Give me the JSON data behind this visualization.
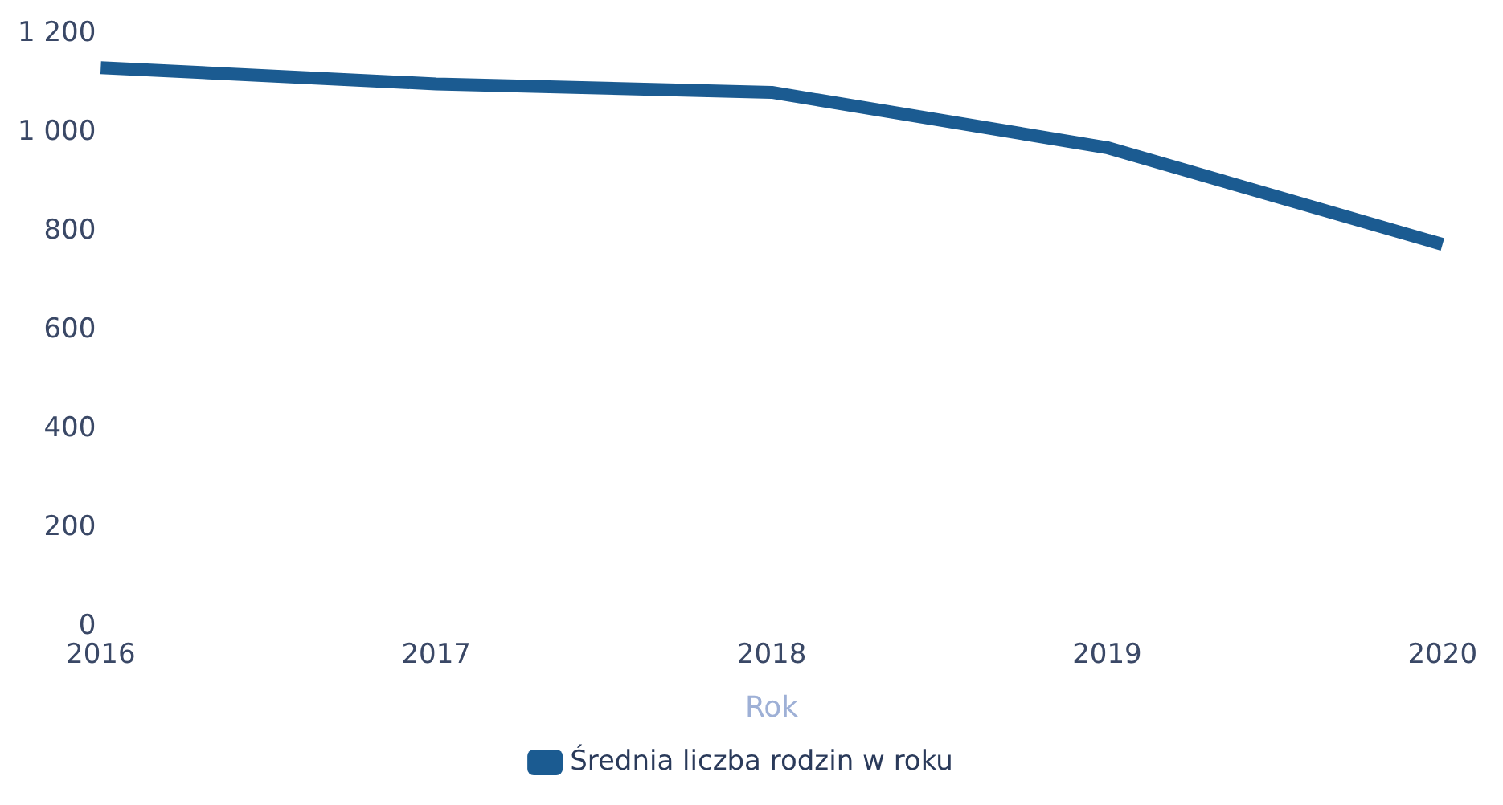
{
  "chart_data": {
    "type": "line",
    "xlabel": "Rok",
    "categories": [
      "2016",
      "2017",
      "2018",
      "2019",
      "2020"
    ],
    "series": [
      {
        "name": "Średnia liczba rodzin w roku",
        "color": "#1b5b91",
        "values": [
          1132,
          1099,
          1082,
          970,
          774
        ]
      }
    ],
    "ylim": [
      0,
      1200
    ],
    "yticks": [
      0,
      200,
      400,
      600,
      800,
      {
        "value": 1000,
        "label": "1 000"
      },
      {
        "value": 1200,
        "label": "1 200"
      }
    ],
    "grid": false,
    "legend": "bottom",
    "marker": "none",
    "line_style": "solid"
  }
}
